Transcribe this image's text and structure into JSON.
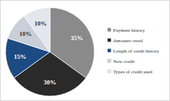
{
  "chart_data": {
    "type": "pie",
    "categories": [
      "Payment history",
      "Amounts owed",
      "Length of credit history",
      "New credit",
      "Types of credit used"
    ],
    "values": [
      35,
      30,
      15,
      10,
      10
    ],
    "value_labels": [
      "35%",
      "30%",
      "15%",
      "10%",
      "10%"
    ],
    "colors": [
      "#8a8a8a",
      "#2a2a2a",
      "#1c4a82",
      "#c9ced8",
      "#e3e6ec"
    ],
    "data_labels": true,
    "legend": "right"
  }
}
